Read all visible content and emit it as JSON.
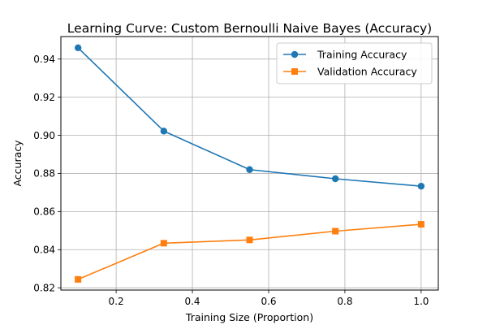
{
  "chart_data": {
    "type": "line",
    "title": "Learning Curve: Custom Bernoulli Naive Bayes (Accuracy)",
    "xlabel": "Training Size (Proportion)",
    "ylabel": "Accuracy",
    "xlim": [
      0.055,
      1.045
    ],
    "ylim": [
      0.8188,
      0.9518
    ],
    "xticks": [
      0.2,
      0.4,
      0.6,
      0.8,
      1.0
    ],
    "xtick_labels": [
      "0.2",
      "0.4",
      "0.6",
      "0.8",
      "1.0"
    ],
    "yticks": [
      0.82,
      0.84,
      0.86,
      0.88,
      0.9,
      0.92,
      0.94
    ],
    "ytick_labels": [
      "0.82",
      "0.84",
      "0.86",
      "0.88",
      "0.90",
      "0.92",
      "0.94"
    ],
    "grid": true,
    "legend_position": "top-right",
    "x": [
      0.1,
      0.325,
      0.55,
      0.775,
      1.0
    ],
    "series": [
      {
        "name": "Training Accuracy",
        "values": [
          0.9459,
          0.9022,
          0.882,
          0.8772,
          0.8733
        ],
        "color": "#1f77b4",
        "marker": "circle"
      },
      {
        "name": "Validation Accuracy",
        "values": [
          0.8244,
          0.8434,
          0.8451,
          0.8497,
          0.8533
        ],
        "color": "#ff7f0e",
        "marker": "square"
      }
    ]
  }
}
